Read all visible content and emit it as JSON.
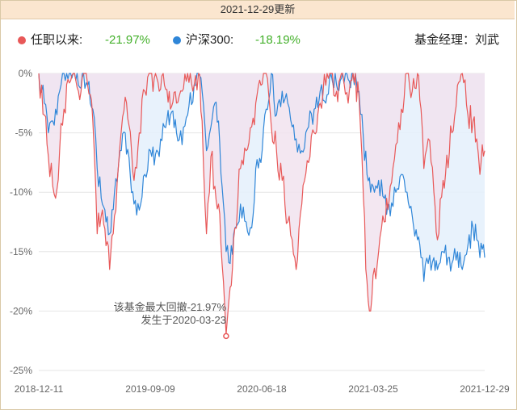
{
  "header": {
    "update_text": "2021-12-29更新"
  },
  "legend": {
    "fund": {
      "name": "任职以来:",
      "value": "-21.97%",
      "color": "#e85858"
    },
    "index": {
      "name": "沪深300:",
      "value": "-18.19%",
      "color": "#2f86d8"
    },
    "manager": "基金经理：刘武",
    "value_color": "#43b02a"
  },
  "annotation": {
    "line1": "该基金最大回撤-21.97%",
    "line2": "发生于2020-03-23",
    "date": "2020-03-23",
    "value": -21.97
  },
  "chart_data": {
    "type": "line",
    "title": "",
    "xlabel": "",
    "ylabel": "",
    "ylim": [
      -25,
      0
    ],
    "yticks": [
      0,
      -5,
      -10,
      -15,
      -20,
      -25
    ],
    "ytick_labels": [
      "0%",
      "-5%",
      "-10%",
      "-15%",
      "-20%",
      "-25%"
    ],
    "xtick_labels": [
      "2018-12-11",
      "2019-09-09",
      "2020-06-18",
      "2021-03-25",
      "2021-12-29"
    ],
    "x_range": [
      "2018-12-11",
      "2021-12-29"
    ],
    "grid": "horizontal",
    "series": [
      {
        "name": "任职以来",
        "color": "#e85858",
        "fill": "#f1e3ee",
        "points": [
          [
            "2018-12-11",
            0
          ],
          [
            "2018-12-25",
            -3.5
          ],
          [
            "2019-01-04",
            -7.0
          ],
          [
            "2019-01-15",
            -9.5
          ],
          [
            "2019-01-22",
            -10.5
          ],
          [
            "2019-02-01",
            -6.5
          ],
          [
            "2019-02-12",
            -3.0
          ],
          [
            "2019-02-22",
            -0.5
          ],
          [
            "2019-03-07",
            0
          ],
          [
            "2019-03-20",
            -1.5
          ],
          [
            "2019-04-02",
            0
          ],
          [
            "2019-04-12",
            -1.0
          ],
          [
            "2019-04-25",
            -4.0
          ],
          [
            "2019-05-06",
            -13.5
          ],
          [
            "2019-05-16",
            -12.0
          ],
          [
            "2019-05-28",
            -14.5
          ],
          [
            "2019-06-06",
            -16.5
          ],
          [
            "2019-06-18",
            -12.0
          ],
          [
            "2019-07-02",
            -6.0
          ],
          [
            "2019-07-15",
            -2.0
          ],
          [
            "2019-08-06",
            -9.0
          ],
          [
            "2019-08-19",
            -5.0
          ],
          [
            "2019-09-02",
            -1.5
          ],
          [
            "2019-09-16",
            0
          ],
          [
            "2019-10-08",
            -1.5
          ],
          [
            "2019-10-21",
            -1.0
          ],
          [
            "2019-11-05",
            -3.0
          ],
          [
            "2019-11-20",
            -2.5
          ],
          [
            "2019-12-04",
            -1.5
          ],
          [
            "2019-12-18",
            0
          ],
          [
            "2020-01-03",
            -1.0
          ],
          [
            "2020-01-14",
            0
          ],
          [
            "2020-01-23",
            -4.0
          ],
          [
            "2020-02-03",
            -13.5
          ],
          [
            "2020-02-14",
            -7.0
          ],
          [
            "2020-02-24",
            -9.5
          ],
          [
            "2020-03-04",
            -11.0
          ],
          [
            "2020-03-13",
            -16.0
          ],
          [
            "2020-03-23",
            -21.97
          ],
          [
            "2020-04-02",
            -18.0
          ],
          [
            "2020-04-14",
            -13.0
          ],
          [
            "2020-04-28",
            -8.0
          ],
          [
            "2020-05-12",
            -6.5
          ],
          [
            "2020-05-26",
            -4.5
          ],
          [
            "2020-06-05",
            -2.5
          ],
          [
            "2020-06-18",
            -1.0
          ],
          [
            "2020-07-01",
            0
          ],
          [
            "2020-07-14",
            -4.5
          ],
          [
            "2020-07-27",
            -6.5
          ],
          [
            "2020-08-10",
            -9.0
          ],
          [
            "2020-08-24",
            -12.5
          ],
          [
            "2020-09-04",
            -14.0
          ],
          [
            "2020-09-14",
            -16.5
          ],
          [
            "2020-09-28",
            -11.0
          ],
          [
            "2020-10-15",
            -7.5
          ],
          [
            "2020-10-29",
            -5.0
          ],
          [
            "2020-11-13",
            -2.5
          ],
          [
            "2020-11-27",
            -1.0
          ],
          [
            "2020-12-10",
            0
          ],
          [
            "2020-12-24",
            -1.5
          ],
          [
            "2021-01-08",
            0
          ],
          [
            "2021-01-22",
            -2.5
          ],
          [
            "2021-02-03",
            0
          ],
          [
            "2021-02-18",
            -2.0
          ],
          [
            "2021-03-01",
            -10.5
          ],
          [
            "2021-03-10",
            -17.5
          ],
          [
            "2021-03-19",
            -20.0
          ],
          [
            "2021-03-25",
            -17.0
          ],
          [
            "2021-04-08",
            -15.0
          ],
          [
            "2021-04-22",
            -12.5
          ],
          [
            "2021-05-07",
            -9.5
          ],
          [
            "2021-05-21",
            -6.0
          ],
          [
            "2021-06-04",
            -3.0
          ],
          [
            "2021-06-18",
            0
          ],
          [
            "2021-07-01",
            -1.5
          ],
          [
            "2021-07-14",
            0
          ],
          [
            "2021-07-23",
            -3.0
          ],
          [
            "2021-07-30",
            -8.0
          ],
          [
            "2021-08-10",
            -5.5
          ],
          [
            "2021-08-24",
            -10.0
          ],
          [
            "2021-09-02",
            -14.0
          ],
          [
            "2021-09-16",
            -9.0
          ],
          [
            "2021-10-08",
            -5.0
          ],
          [
            "2021-10-22",
            -1.0
          ],
          [
            "2021-11-03",
            0
          ],
          [
            "2021-11-17",
            -3.5
          ],
          [
            "2021-11-30",
            -4.0
          ],
          [
            "2021-12-09",
            -5.5
          ],
          [
            "2021-12-17",
            -8.5
          ],
          [
            "2021-12-23",
            -6.0
          ],
          [
            "2021-12-29",
            -6.5
          ]
        ]
      },
      {
        "name": "沪深300",
        "color": "#2f86d8",
        "fill": "#e4f0fb",
        "points": [
          [
            "2018-12-11",
            0
          ],
          [
            "2018-12-25",
            -2.5
          ],
          [
            "2019-01-04",
            -5.0
          ],
          [
            "2019-01-15",
            -4.0
          ],
          [
            "2019-01-22",
            -3.0
          ],
          [
            "2019-02-01",
            -1.5
          ],
          [
            "2019-02-12",
            0
          ],
          [
            "2019-03-07",
            0
          ],
          [
            "2019-03-20",
            -1.0
          ],
          [
            "2019-04-02",
            0
          ],
          [
            "2019-04-12",
            -1.0
          ],
          [
            "2019-04-25",
            -3.0
          ],
          [
            "2019-05-06",
            -8.0
          ],
          [
            "2019-05-16",
            -10.5
          ],
          [
            "2019-05-28",
            -12.5
          ],
          [
            "2019-06-06",
            -13.5
          ],
          [
            "2019-06-18",
            -10.0
          ],
          [
            "2019-07-02",
            -6.5
          ],
          [
            "2019-07-15",
            -5.0
          ],
          [
            "2019-08-06",
            -11.0
          ],
          [
            "2019-08-19",
            -11.5
          ],
          [
            "2019-09-02",
            -8.5
          ],
          [
            "2019-09-16",
            -6.5
          ],
          [
            "2019-10-08",
            -7.0
          ],
          [
            "2019-10-21",
            -4.5
          ],
          [
            "2019-11-05",
            -3.5
          ],
          [
            "2019-11-20",
            -5.0
          ],
          [
            "2019-12-04",
            -6.0
          ],
          [
            "2019-12-18",
            -3.5
          ],
          [
            "2020-01-03",
            -1.0
          ],
          [
            "2020-01-14",
            0
          ],
          [
            "2020-01-23",
            -1.5
          ],
          [
            "2020-02-03",
            -6.5
          ],
          [
            "2020-02-14",
            -4.5
          ],
          [
            "2020-02-24",
            -2.5
          ],
          [
            "2020-03-04",
            -4.0
          ],
          [
            "2020-03-13",
            -9.5
          ],
          [
            "2020-03-23",
            -15.0
          ],
          [
            "2020-04-02",
            -16.0
          ],
          [
            "2020-04-14",
            -13.0
          ],
          [
            "2020-04-28",
            -11.0
          ],
          [
            "2020-05-12",
            -12.5
          ],
          [
            "2020-05-26",
            -13.0
          ],
          [
            "2020-06-05",
            -8.0
          ],
          [
            "2020-06-18",
            -7.5
          ],
          [
            "2020-07-01",
            -3.0
          ],
          [
            "2020-07-14",
            0
          ],
          [
            "2020-07-27",
            -3.5
          ],
          [
            "2020-08-10",
            -1.5
          ],
          [
            "2020-08-24",
            -2.5
          ],
          [
            "2020-09-04",
            -4.5
          ],
          [
            "2020-09-14",
            -5.5
          ],
          [
            "2020-09-28",
            -6.5
          ],
          [
            "2020-10-15",
            -4.5
          ],
          [
            "2020-10-29",
            -3.0
          ],
          [
            "2020-11-13",
            -1.5
          ],
          [
            "2020-11-27",
            -2.5
          ],
          [
            "2020-12-10",
            0
          ],
          [
            "2020-12-24",
            -1.0
          ],
          [
            "2021-01-08",
            0
          ],
          [
            "2021-01-22",
            -0.5
          ],
          [
            "2021-02-03",
            0
          ],
          [
            "2021-02-18",
            -1.5
          ],
          [
            "2021-03-01",
            -5.5
          ],
          [
            "2021-03-10",
            -8.5
          ],
          [
            "2021-03-19",
            -10.0
          ],
          [
            "2021-03-25",
            -9.5
          ],
          [
            "2021-04-08",
            -9.0
          ],
          [
            "2021-04-22",
            -10.5
          ],
          [
            "2021-05-07",
            -12.0
          ],
          [
            "2021-05-21",
            -10.0
          ],
          [
            "2021-06-04",
            -8.5
          ],
          [
            "2021-06-18",
            -10.0
          ],
          [
            "2021-07-01",
            -12.0
          ],
          [
            "2021-07-14",
            -14.0
          ],
          [
            "2021-07-23",
            -15.5
          ],
          [
            "2021-07-30",
            -17.5
          ],
          [
            "2021-08-10",
            -16.0
          ],
          [
            "2021-08-24",
            -15.5
          ],
          [
            "2021-09-02",
            -16.5
          ],
          [
            "2021-09-16",
            -15.0
          ],
          [
            "2021-10-08",
            -16.0
          ],
          [
            "2021-10-22",
            -15.0
          ],
          [
            "2021-11-03",
            -16.5
          ],
          [
            "2021-11-17",
            -14.5
          ],
          [
            "2021-11-30",
            -13.0
          ],
          [
            "2021-12-09",
            -14.0
          ],
          [
            "2021-12-17",
            -15.5
          ],
          [
            "2021-12-23",
            -14.8
          ],
          [
            "2021-12-29",
            -15.5
          ]
        ]
      }
    ]
  }
}
